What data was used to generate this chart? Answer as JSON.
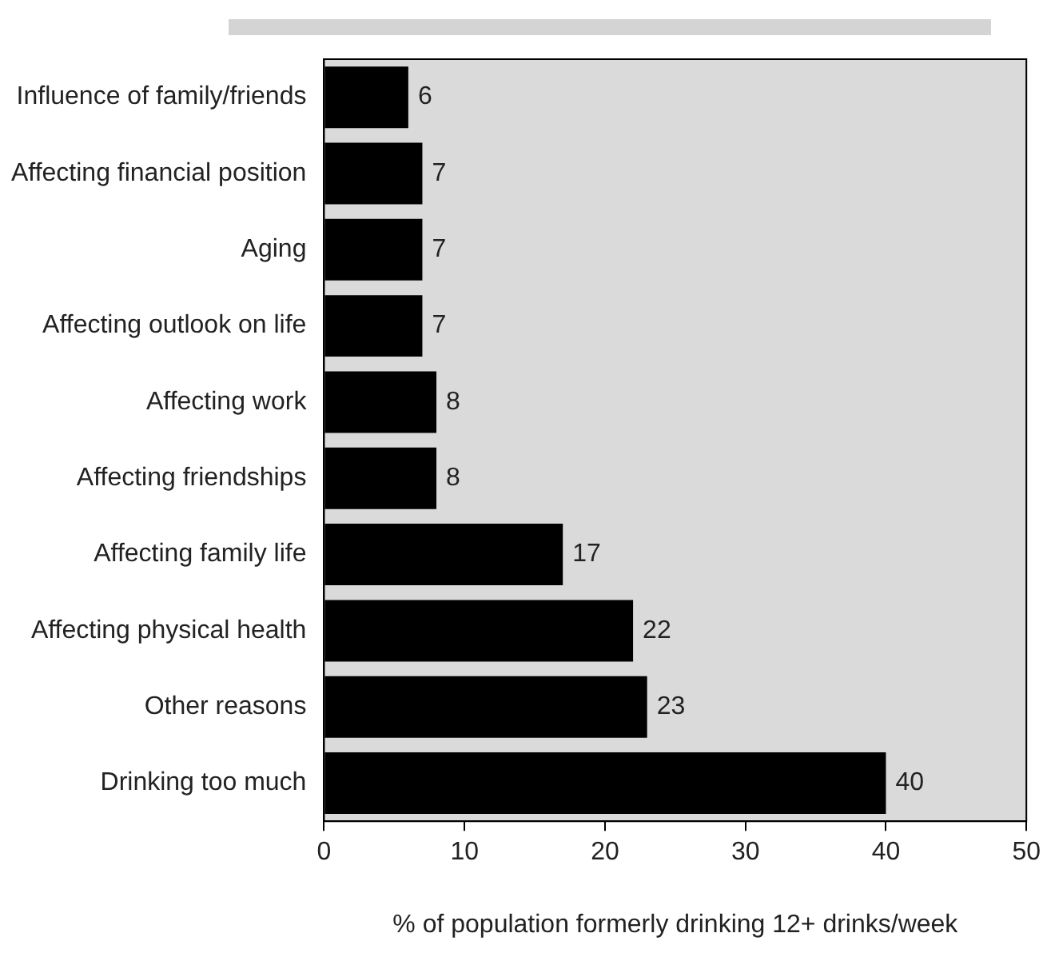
{
  "chart_data": {
    "type": "bar",
    "orientation": "horizontal",
    "xlabel": "% of population formerly drinking 12+ drinks/week",
    "categories": [
      "Influence of family/friends",
      "Affecting financial position",
      "Aging",
      "Affecting outlook on life",
      "Affecting work",
      "Affecting friendships",
      "Affecting family life",
      "Affecting physical health",
      "Other reasons",
      "Drinking too much"
    ],
    "values": [
      6,
      7,
      7,
      7,
      8,
      8,
      17,
      22,
      23,
      40
    ],
    "color": "#000000",
    "xlim": [
      0,
      50
    ],
    "xticks": [
      0,
      10,
      20,
      30,
      40,
      50
    ],
    "data_labels": true,
    "legend": false
  }
}
